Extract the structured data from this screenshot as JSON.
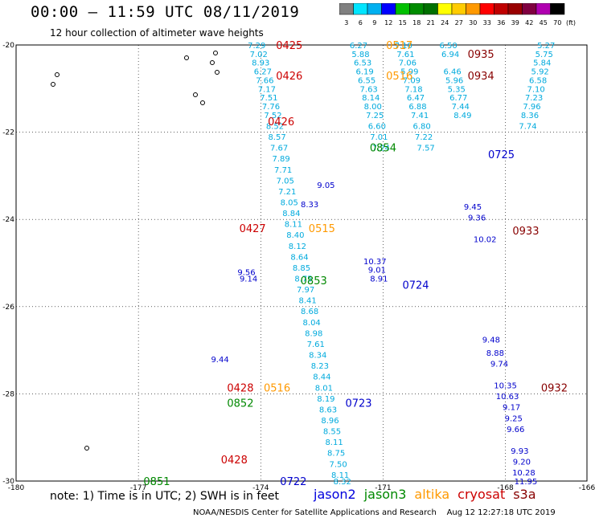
{
  "header": {
    "title": "00:00 – 11:59 UTC 08/11/2019",
    "subtitle": "12 hour collection of altimeter wave heights"
  },
  "colorbar": {
    "unit": "(ft)",
    "ticks": [
      "3",
      "6",
      "9",
      "12",
      "15",
      "18",
      "21",
      "24",
      "27",
      "30",
      "33",
      "36",
      "39",
      "42",
      "45",
      "70"
    ],
    "colors": [
      "#808080",
      "#00e5ff",
      "#00b0f0",
      "#0000ff",
      "#00c000",
      "#008c00",
      "#007000",
      "#ffff00",
      "#ffcc00",
      "#ff9900",
      "#ff0000",
      "#c00000",
      "#990000",
      "#800040",
      "#b000b0",
      "#000000"
    ]
  },
  "note": {
    "text": "note:  1) Time is in UTC;  2) SWH is in feet",
    "legend": [
      {
        "label": "jason2",
        "color": "#0000dd"
      },
      {
        "label": "jason3",
        "color": "#008800"
      },
      {
        "label": "altika",
        "color": "#ff9900"
      },
      {
        "label": "cryosat",
        "color": "#cc0000"
      },
      {
        "label": "s3a",
        "color": "#880000"
      }
    ]
  },
  "footer": {
    "credit": "NOAA/NESDIS Center for Satellite Applications and Research",
    "timestamp": "Aug 12 12:27:18 UTC 2019"
  },
  "chart_data": {
    "type": "scatter",
    "xlim": [
      -180,
      -166
    ],
    "ylim": [
      -30,
      -20
    ],
    "xticks": [
      "-180",
      "-177",
      "-174",
      "-171",
      "-168",
      "-166"
    ],
    "yticks": [
      "-20",
      "-22",
      "-24",
      "-26",
      "-28",
      "-30"
    ],
    "grid": true,
    "series": [
      {
        "name": "jason2",
        "color": "#0000cc",
        "points": [
          {
            "x": -171.2,
            "y": -24.95,
            "v": "10.37"
          },
          {
            "x": -171.15,
            "y": -25.15,
            "v": "9.01"
          },
          {
            "x": -171.1,
            "y": -25.35,
            "v": "8.91"
          },
          {
            "x": -168.8,
            "y": -23.7,
            "v": "9.45"
          },
          {
            "x": -168.7,
            "y": -23.95,
            "v": "9.36"
          },
          {
            "x": -168.5,
            "y": -24.45,
            "v": "10.02"
          },
          {
            "x": -168.35,
            "y": -26.75,
            "v": "9.48"
          },
          {
            "x": -168.25,
            "y": -27.05,
            "v": "8.88"
          },
          {
            "x": -168.15,
            "y": -27.3,
            "v": "9.74"
          },
          {
            "x": -168.0,
            "y": -27.8,
            "v": "10.35"
          },
          {
            "x": -167.95,
            "y": -28.05,
            "v": "10.63"
          },
          {
            "x": -167.85,
            "y": -28.3,
            "v": "9.17"
          },
          {
            "x": -167.8,
            "y": -28.55,
            "v": "9.25"
          },
          {
            "x": -167.75,
            "y": -28.8,
            "v": "9.66"
          },
          {
            "x": -167.65,
            "y": -29.3,
            "v": "9.93"
          },
          {
            "x": -167.6,
            "y": -29.55,
            "v": "9.20"
          },
          {
            "x": -167.55,
            "y": -29.8,
            "v": "10.28"
          },
          {
            "x": -167.5,
            "y": -30.0,
            "v": "11.95"
          },
          {
            "x": -174.35,
            "y": -25.2,
            "v": "9.56"
          },
          {
            "x": -174.3,
            "y": -25.35,
            "v": "9.14"
          },
          {
            "x": -175.0,
            "y": -27.2,
            "v": "9.44"
          },
          {
            "x": -172.4,
            "y": -23.2,
            "v": "9.05"
          },
          {
            "x": -172.8,
            "y": -23.65,
            "v": "8.33"
          }
        ]
      },
      {
        "name": "jason3",
        "color": "#008800",
        "points": []
      },
      {
        "name": "altika",
        "color": "#ff9900",
        "points": []
      },
      {
        "name": "cryosat",
        "color": "#cc0000",
        "points": []
      },
      {
        "name": "s3a",
        "color": "#880000",
        "points": []
      }
    ],
    "cyan_points": [
      {
        "x": -174.1,
        "y": -20.0,
        "v": "7.29"
      },
      {
        "x": -174.05,
        "y": -20.2,
        "v": "7.02"
      },
      {
        "x": -174.0,
        "y": -20.4,
        "v": "8.93"
      },
      {
        "x": -173.95,
        "y": -20.6,
        "v": "6.27"
      },
      {
        "x": -173.9,
        "y": -20.8,
        "v": "7.66"
      },
      {
        "x": -173.85,
        "y": -21.0,
        "v": "7.17"
      },
      {
        "x": -173.8,
        "y": -21.2,
        "v": "7.51"
      },
      {
        "x": -173.75,
        "y": -21.4,
        "v": "7.76"
      },
      {
        "x": -173.7,
        "y": -21.6,
        "v": "7.52"
      },
      {
        "x": -173.65,
        "y": -21.85,
        "v": "8.52"
      },
      {
        "x": -173.6,
        "y": -22.1,
        "v": "8.57"
      },
      {
        "x": -173.55,
        "y": -22.35,
        "v": "7.67"
      },
      {
        "x": -173.5,
        "y": -22.6,
        "v": "7.89"
      },
      {
        "x": -173.45,
        "y": -22.85,
        "v": "7.71"
      },
      {
        "x": -173.4,
        "y": -23.1,
        "v": "7.05"
      },
      {
        "x": -173.35,
        "y": -23.35,
        "v": "7.21"
      },
      {
        "x": -173.3,
        "y": -23.6,
        "v": "8.05"
      },
      {
        "x": -173.25,
        "y": -23.85,
        "v": "8.84"
      },
      {
        "x": -173.2,
        "y": -24.1,
        "v": "8.11"
      },
      {
        "x": -173.15,
        "y": -24.35,
        "v": "8.40"
      },
      {
        "x": -173.1,
        "y": -24.6,
        "v": "8.12"
      },
      {
        "x": -173.05,
        "y": -24.85,
        "v": "8.64"
      },
      {
        "x": -173.0,
        "y": -25.1,
        "v": "8.85"
      },
      {
        "x": -172.95,
        "y": -25.35,
        "v": "8.75"
      },
      {
        "x": -172.9,
        "y": -25.6,
        "v": "7.97"
      },
      {
        "x": -172.85,
        "y": -25.85,
        "v": "8.41"
      },
      {
        "x": -172.8,
        "y": -26.1,
        "v": "8.68"
      },
      {
        "x": -172.75,
        "y": -26.35,
        "v": "8.04"
      },
      {
        "x": -172.7,
        "y": -26.6,
        "v": "8.98"
      },
      {
        "x": -172.65,
        "y": -26.85,
        "v": "7.61"
      },
      {
        "x": -172.6,
        "y": -27.1,
        "v": "8.34"
      },
      {
        "x": -172.55,
        "y": -27.35,
        "v": "8.23"
      },
      {
        "x": -172.5,
        "y": -27.6,
        "v": "8.44"
      },
      {
        "x": -172.45,
        "y": -27.85,
        "v": "8.01"
      },
      {
        "x": -172.4,
        "y": -28.1,
        "v": "8.19"
      },
      {
        "x": -172.35,
        "y": -28.35,
        "v": "8.63"
      },
      {
        "x": -172.3,
        "y": -28.6,
        "v": "8.96"
      },
      {
        "x": -172.25,
        "y": -28.85,
        "v": "8.55"
      },
      {
        "x": -172.2,
        "y": -29.1,
        "v": "8.11"
      },
      {
        "x": -172.15,
        "y": -29.35,
        "v": "8.75"
      },
      {
        "x": -172.1,
        "y": -29.6,
        "v": "7.50"
      },
      {
        "x": -172.05,
        "y": -29.85,
        "v": "8.11"
      },
      {
        "x": -172.0,
        "y": -30.0,
        "v": "8.32"
      },
      {
        "x": -171.6,
        "y": -20.0,
        "v": "6.27"
      },
      {
        "x": -171.55,
        "y": -20.2,
        "v": "5.88"
      },
      {
        "x": -171.5,
        "y": -20.4,
        "v": "6.53"
      },
      {
        "x": -171.45,
        "y": -20.6,
        "v": "6.19"
      },
      {
        "x": -171.4,
        "y": -20.8,
        "v": "6.55"
      },
      {
        "x": -171.35,
        "y": -21.0,
        "v": "7.63"
      },
      {
        "x": -171.3,
        "y": -21.2,
        "v": "8.14"
      },
      {
        "x": -171.25,
        "y": -21.4,
        "v": "8.00"
      },
      {
        "x": -171.2,
        "y": -21.6,
        "v": "7.25"
      },
      {
        "x": -171.15,
        "y": -21.85,
        "v": "6.60"
      },
      {
        "x": -171.1,
        "y": -22.1,
        "v": "7.01"
      },
      {
        "x": -171.05,
        "y": -22.35,
        "v": "7.24"
      },
      {
        "x": -170.5,
        "y": -20.0,
        "v": "7.10"
      },
      {
        "x": -170.45,
        "y": -20.2,
        "v": "7.61"
      },
      {
        "x": -170.4,
        "y": -20.4,
        "v": "7.06"
      },
      {
        "x": -170.35,
        "y": -20.6,
        "v": "5.99"
      },
      {
        "x": -170.3,
        "y": -20.8,
        "v": "7.09"
      },
      {
        "x": -170.25,
        "y": -21.0,
        "v": "7.18"
      },
      {
        "x": -170.2,
        "y": -21.2,
        "v": "6.47"
      },
      {
        "x": -170.15,
        "y": -21.4,
        "v": "6.88"
      },
      {
        "x": -170.1,
        "y": -21.6,
        "v": "7.41"
      },
      {
        "x": -170.05,
        "y": -21.85,
        "v": "6.80"
      },
      {
        "x": -170.0,
        "y": -22.1,
        "v": "7.22"
      },
      {
        "x": -169.95,
        "y": -22.35,
        "v": "7.57"
      },
      {
        "x": -169.4,
        "y": -20.0,
        "v": "6.50"
      },
      {
        "x": -169.35,
        "y": -20.2,
        "v": "6.94"
      },
      {
        "x": -169.3,
        "y": -20.6,
        "v": "6.46"
      },
      {
        "x": -169.25,
        "y": -20.8,
        "v": "5.96"
      },
      {
        "x": -169.2,
        "y": -21.0,
        "v": "5.35"
      },
      {
        "x": -169.15,
        "y": -21.2,
        "v": "6.77"
      },
      {
        "x": -169.1,
        "y": -21.4,
        "v": "7.44"
      },
      {
        "x": -169.05,
        "y": -21.6,
        "v": "8.49"
      },
      {
        "x": -167.0,
        "y": -20.0,
        "v": "5.27"
      },
      {
        "x": -167.05,
        "y": -20.2,
        "v": "5.75"
      },
      {
        "x": -167.1,
        "y": -20.4,
        "v": "5.84"
      },
      {
        "x": -167.15,
        "y": -20.6,
        "v": "5.92"
      },
      {
        "x": -167.2,
        "y": -20.8,
        "v": "6.58"
      },
      {
        "x": -167.25,
        "y": -21.0,
        "v": "7.10"
      },
      {
        "x": -167.3,
        "y": -21.2,
        "v": "7.23"
      },
      {
        "x": -167.35,
        "y": -21.4,
        "v": "7.96"
      },
      {
        "x": -167.4,
        "y": -21.6,
        "v": "8.36"
      },
      {
        "x": -167.45,
        "y": -21.85,
        "v": "7.74"
      }
    ],
    "labels": [
      {
        "x": -173.3,
        "y": -20.0,
        "t": "0425",
        "c": "#cc0000"
      },
      {
        "x": -170.6,
        "y": -20.0,
        "t": "0517",
        "c": "#ff9900"
      },
      {
        "x": -168.6,
        "y": -20.2,
        "t": "0935",
        "c": "#880000"
      },
      {
        "x": -173.3,
        "y": -20.7,
        "t": "0426",
        "c": "#cc0000"
      },
      {
        "x": -170.6,
        "y": -20.7,
        "t": "0516",
        "c": "#ff9900"
      },
      {
        "x": -168.6,
        "y": -20.7,
        "t": "0934",
        "c": "#880000"
      },
      {
        "x": -173.5,
        "y": -21.75,
        "t": "0426",
        "c": "#cc0000"
      },
      {
        "x": -171.0,
        "y": -22.35,
        "t": "0854",
        "c": "#008800"
      },
      {
        "x": -168.1,
        "y": -22.5,
        "t": "0725",
        "c": "#0000cc"
      },
      {
        "x": -174.2,
        "y": -24.2,
        "t": "0427",
        "c": "#cc0000"
      },
      {
        "x": -172.5,
        "y": -24.2,
        "t": "0515",
        "c": "#ff9900"
      },
      {
        "x": -167.5,
        "y": -24.25,
        "t": "0933",
        "c": "#880000"
      },
      {
        "x": -172.7,
        "y": -25.4,
        "t": "0853",
        "c": "#008800"
      },
      {
        "x": -170.2,
        "y": -25.5,
        "t": "0724",
        "c": "#0000cc"
      },
      {
        "x": -166.8,
        "y": -27.85,
        "t": "0932",
        "c": "#880000"
      },
      {
        "x": -174.5,
        "y": -27.85,
        "t": "0428",
        "c": "#cc0000"
      },
      {
        "x": -173.6,
        "y": -27.85,
        "t": "0516",
        "c": "#ff9900"
      },
      {
        "x": -174.5,
        "y": -28.2,
        "t": "0852",
        "c": "#008800"
      },
      {
        "x": -171.6,
        "y": -28.2,
        "t": "0723",
        "c": "#0000cc"
      },
      {
        "x": -174.65,
        "y": -29.5,
        "t": "0428",
        "c": "#cc0000"
      },
      {
        "x": -176.55,
        "y": -30.0,
        "t": "0851",
        "c": "#008800"
      },
      {
        "x": -173.2,
        "y": -30.0,
        "t": "0722",
        "c": "#0000cc"
      }
    ]
  }
}
